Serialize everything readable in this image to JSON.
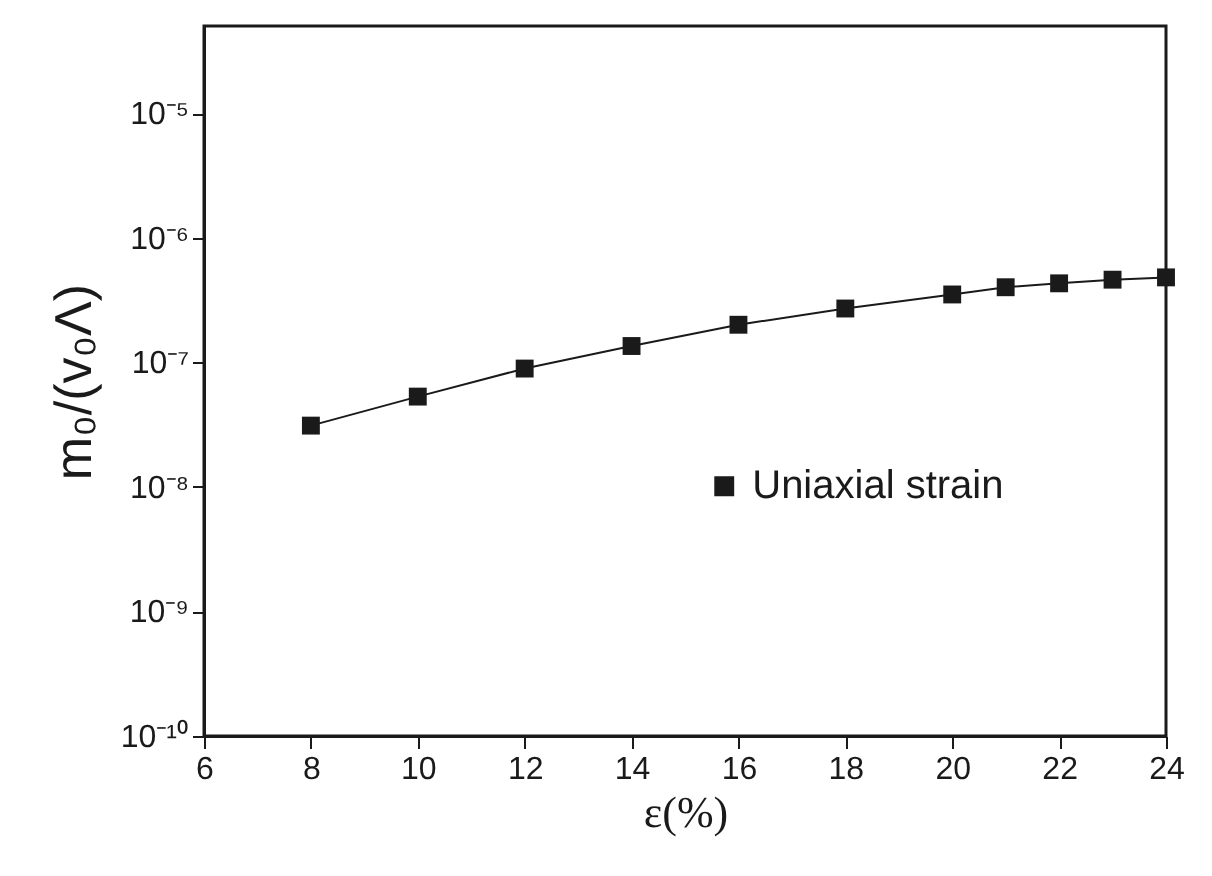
{
  "chart_data": {
    "type": "line",
    "xlabel": "ε(%)",
    "ylabel": "m₀/(v₀Λ)",
    "x": [
      8,
      10,
      12,
      14,
      16,
      18,
      20,
      21,
      22,
      23,
      24
    ],
    "series": [
      {
        "name": "Uniaxial strain",
        "color": "#1a1a1a",
        "values": [
          3.1e-08,
          5.3e-08,
          8.9e-08,
          1.35e-07,
          2e-07,
          2.7e-07,
          3.5e-07,
          4e-07,
          4.3e-07,
          4.6e-07,
          4.8e-07
        ]
      }
    ],
    "xlim": [
      6,
      24
    ],
    "xticks": [
      6,
      8,
      10,
      12,
      14,
      16,
      18,
      20,
      22,
      24
    ],
    "ylim": [
      1e-10,
      5e-05
    ],
    "yticks": [
      {
        "value": 1e-10,
        "label": "10⁻¹⁰"
      },
      {
        "value": 1e-09,
        "label": "10⁻⁹"
      },
      {
        "value": 1e-08,
        "label": "10⁻⁸"
      },
      {
        "value": 1e-07,
        "label": "10⁻⁷"
      },
      {
        "value": 1e-06,
        "label": "10⁻⁶"
      },
      {
        "value": 1e-05,
        "label": "10⁻⁵"
      }
    ],
    "log": true,
    "grid": false,
    "legend": "right",
    "marker": "square",
    "line_style": "solid"
  }
}
